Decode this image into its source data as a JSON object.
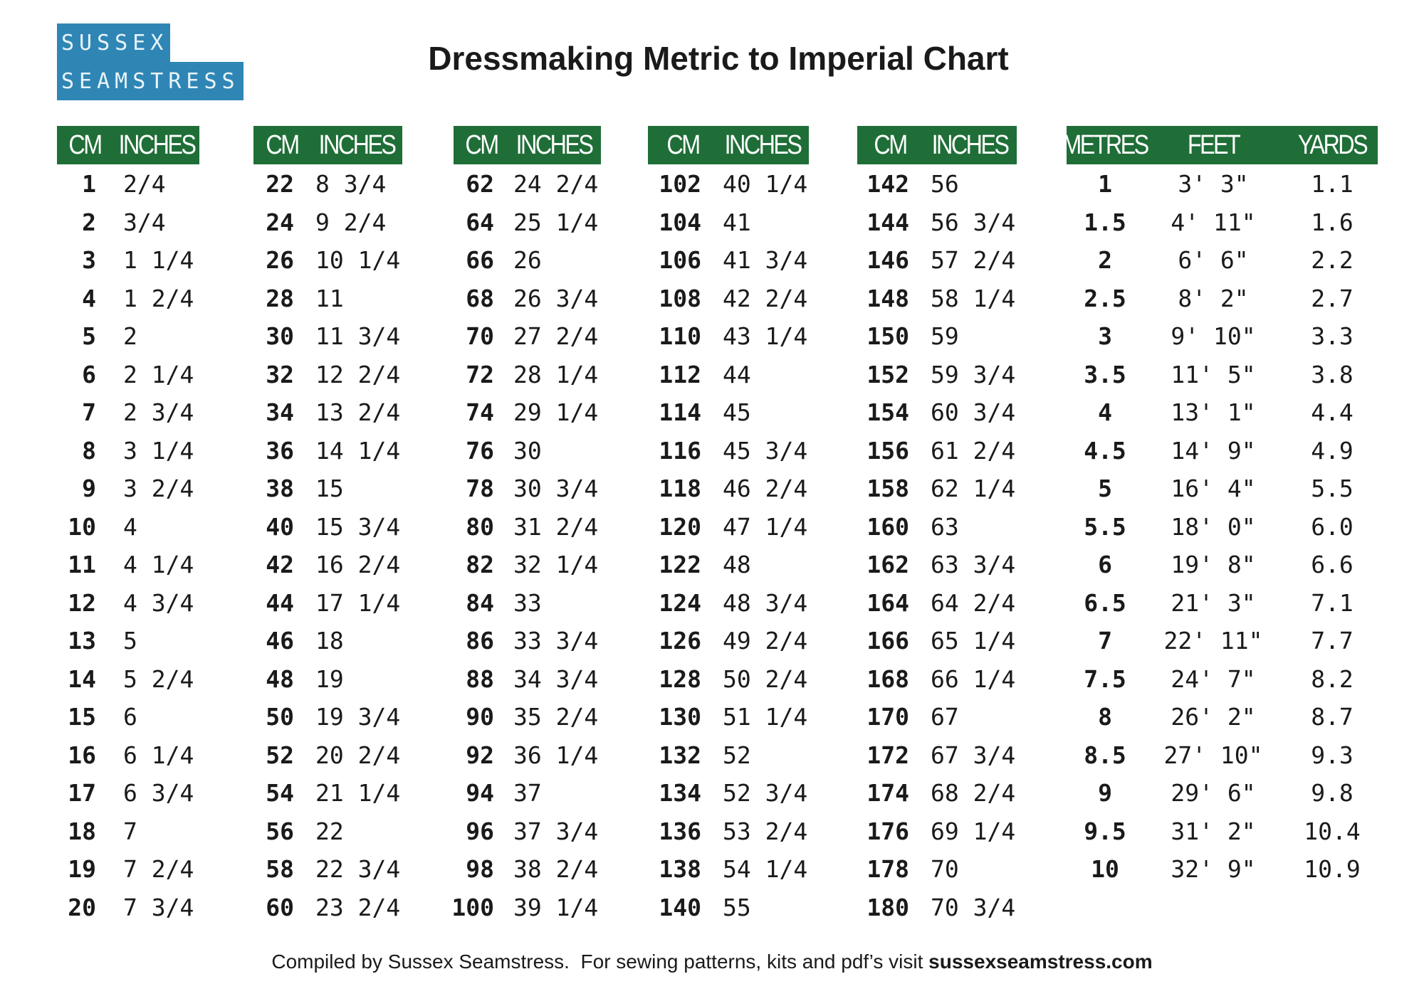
{
  "logo": {
    "line1": "SUSSEX",
    "line2": "SEAMSTRESS"
  },
  "title": "Dressmaking Metric to Imperial Chart",
  "tables": [
    {
      "headers": [
        "CM",
        "INCHES"
      ],
      "rows": [
        [
          "1",
          "2/4"
        ],
        [
          "2",
          "3/4"
        ],
        [
          "3",
          "1 1/4"
        ],
        [
          "4",
          "1 2/4"
        ],
        [
          "5",
          "2"
        ],
        [
          "6",
          "2 1/4"
        ],
        [
          "7",
          "2 3/4"
        ],
        [
          "8",
          "3 1/4"
        ],
        [
          "9",
          "3 2/4"
        ],
        [
          "10",
          "4"
        ],
        [
          "11",
          "4 1/4"
        ],
        [
          "12",
          "4 3/4"
        ],
        [
          "13",
          "5"
        ],
        [
          "14",
          "5 2/4"
        ],
        [
          "15",
          "6"
        ],
        [
          "16",
          "6 1/4"
        ],
        [
          "17",
          "6 3/4"
        ],
        [
          "18",
          "7"
        ],
        [
          "19",
          "7 2/4"
        ],
        [
          "20",
          "7 3/4"
        ]
      ]
    },
    {
      "headers": [
        "CM",
        "INCHES"
      ],
      "rows": [
        [
          "22",
          "8 3/4"
        ],
        [
          "24",
          "9 2/4"
        ],
        [
          "26",
          "10 1/4"
        ],
        [
          "28",
          "11"
        ],
        [
          "30",
          "11 3/4"
        ],
        [
          "32",
          "12 2/4"
        ],
        [
          "34",
          "13 2/4"
        ],
        [
          "36",
          "14 1/4"
        ],
        [
          "38",
          "15"
        ],
        [
          "40",
          "15 3/4"
        ],
        [
          "42",
          "16 2/4"
        ],
        [
          "44",
          "17 1/4"
        ],
        [
          "46",
          "18"
        ],
        [
          "48",
          "19"
        ],
        [
          "50",
          "19 3/4"
        ],
        [
          "52",
          "20 2/4"
        ],
        [
          "54",
          "21 1/4"
        ],
        [
          "56",
          "22"
        ],
        [
          "58",
          "22 3/4"
        ],
        [
          "60",
          "23 2/4"
        ]
      ]
    },
    {
      "headers": [
        "CM",
        "INCHES"
      ],
      "rows": [
        [
          "62",
          "24 2/4"
        ],
        [
          "64",
          "25 1/4"
        ],
        [
          "66",
          "26"
        ],
        [
          "68",
          "26 3/4"
        ],
        [
          "70",
          "27 2/4"
        ],
        [
          "72",
          "28 1/4"
        ],
        [
          "74",
          "29 1/4"
        ],
        [
          "76",
          "30"
        ],
        [
          "78",
          "30 3/4"
        ],
        [
          "80",
          "31 2/4"
        ],
        [
          "82",
          "32 1/4"
        ],
        [
          "84",
          "33"
        ],
        [
          "86",
          "33 3/4"
        ],
        [
          "88",
          "34 3/4"
        ],
        [
          "90",
          "35 2/4"
        ],
        [
          "92",
          "36 1/4"
        ],
        [
          "94",
          "37"
        ],
        [
          "96",
          "37 3/4"
        ],
        [
          "98",
          "38 2/4"
        ],
        [
          "100",
          "39 1/4"
        ]
      ]
    },
    {
      "headers": [
        "CM",
        "INCHES"
      ],
      "rows": [
        [
          "102",
          "40 1/4"
        ],
        [
          "104",
          "41"
        ],
        [
          "106",
          "41 3/4"
        ],
        [
          "108",
          "42 2/4"
        ],
        [
          "110",
          "43 1/4"
        ],
        [
          "112",
          "44"
        ],
        [
          "114",
          "45"
        ],
        [
          "116",
          "45 3/4"
        ],
        [
          "118",
          "46 2/4"
        ],
        [
          "120",
          "47 1/4"
        ],
        [
          "122",
          "48"
        ],
        [
          "124",
          "48 3/4"
        ],
        [
          "126",
          "49 2/4"
        ],
        [
          "128",
          "50 2/4"
        ],
        [
          "130",
          "51 1/4"
        ],
        [
          "132",
          "52"
        ],
        [
          "134",
          "52 3/4"
        ],
        [
          "136",
          "53 2/4"
        ],
        [
          "138",
          "54 1/4"
        ],
        [
          "140",
          "55"
        ]
      ]
    },
    {
      "headers": [
        "CM",
        "INCHES"
      ],
      "rows": [
        [
          "142",
          "56"
        ],
        [
          "144",
          "56 3/4"
        ],
        [
          "146",
          "57 2/4"
        ],
        [
          "148",
          "58 1/4"
        ],
        [
          "150",
          "59"
        ],
        [
          "152",
          "59 3/4"
        ],
        [
          "154",
          "60 3/4"
        ],
        [
          "156",
          "61 2/4"
        ],
        [
          "158",
          "62 1/4"
        ],
        [
          "160",
          "63"
        ],
        [
          "162",
          "63 3/4"
        ],
        [
          "164",
          "64 2/4"
        ],
        [
          "166",
          "65 1/4"
        ],
        [
          "168",
          "66 1/4"
        ],
        [
          "170",
          "67"
        ],
        [
          "172",
          "67 3/4"
        ],
        [
          "174",
          "68 2/4"
        ],
        [
          "176",
          "69 1/4"
        ],
        [
          "178",
          "70"
        ],
        [
          "180",
          "70 3/4"
        ]
      ]
    },
    {
      "headers": [
        "METRES",
        "FEET",
        "YARDS"
      ],
      "rows": [
        [
          "1",
          "3' 3\"",
          "1.1"
        ],
        [
          "1.5",
          "4' 11\"",
          "1.6"
        ],
        [
          "2",
          "6' 6\"",
          "2.2"
        ],
        [
          "2.5",
          "8' 2\"",
          "2.7"
        ],
        [
          "3",
          "9' 10\"",
          "3.3"
        ],
        [
          "3.5",
          "11' 5\"",
          "3.8"
        ],
        [
          "4",
          "13' 1\"",
          "4.4"
        ],
        [
          "4.5",
          "14' 9\"",
          "4.9"
        ],
        [
          "5",
          "16' 4\"",
          "5.5"
        ],
        [
          "5.5",
          "18' 0\"",
          "6.0"
        ],
        [
          "6",
          "19' 8\"",
          "6.6"
        ],
        [
          "6.5",
          "21' 3\"",
          "7.1"
        ],
        [
          "7",
          "22' 11\"",
          "7.7"
        ],
        [
          "7.5",
          "24' 7\"",
          "8.2"
        ],
        [
          "8",
          "26' 2\"",
          "8.7"
        ],
        [
          "8.5",
          "27' 10\"",
          "9.3"
        ],
        [
          "9",
          "29' 6\"",
          "9.8"
        ],
        [
          "9.5",
          "31' 2\"",
          "10.4"
        ],
        [
          "10",
          "32' 9\"",
          "10.9"
        ]
      ]
    }
  ],
  "footer": {
    "text": "Compiled by Sussex Seamstress.  For sewing patterns, kits and pdf’s visit ",
    "link": "sussexseamstress.com"
  }
}
